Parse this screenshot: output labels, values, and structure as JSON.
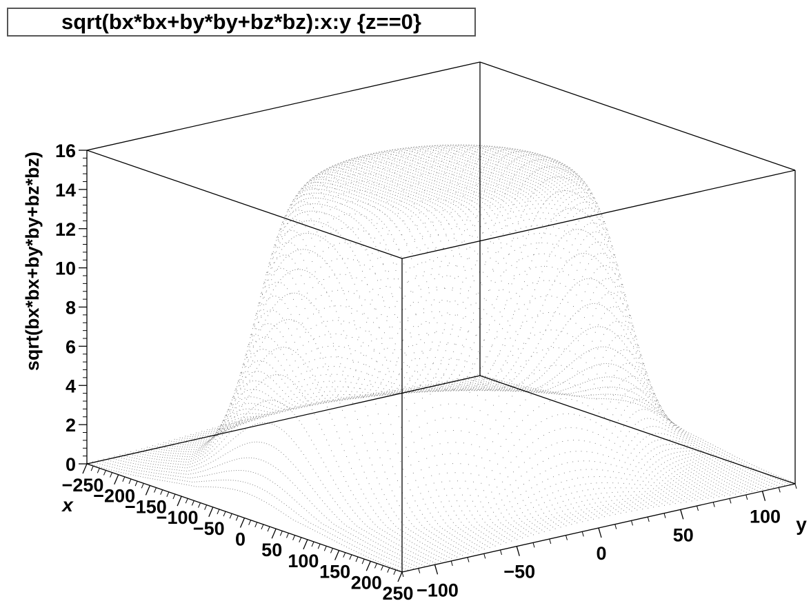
{
  "title": "sqrt(bx*bx+by*by+bz*bz):x:y {z==0}",
  "chart_data": {
    "type": "scatter3d",
    "title": "sqrt(bx*bx+by*by+bz*bz):x:y {z==0}",
    "xlabel": "x",
    "ylabel": "y",
    "zlabel": "sqrt(bx*bx+by*by+bz*bz)",
    "xlim": [
      -250,
      250
    ],
    "ylim": [
      -120,
      120
    ],
    "zlim": [
      0,
      16
    ],
    "x_ticks": [
      "250",
      "200",
      "150",
      "100",
      "50",
      "0",
      "−50",
      "−100",
      "−150",
      "−200",
      "−250"
    ],
    "x_tick_values": [
      250,
      200,
      150,
      100,
      50,
      0,
      -50,
      -100,
      -150,
      -200,
      -250
    ],
    "y_ticks": [
      "−100",
      "−50",
      "0",
      "50",
      "100"
    ],
    "y_tick_values": [
      -100,
      -50,
      0,
      50,
      100
    ],
    "z_ticks": [
      "0",
      "2",
      "4",
      "6",
      "8",
      "10",
      "12",
      "14",
      "16"
    ],
    "z_tick_values": [
      0,
      2,
      4,
      6,
      8,
      10,
      12,
      14,
      16
    ],
    "grid": false,
    "colors": {
      "points": "#444444",
      "frame": "#000000"
    }
  }
}
